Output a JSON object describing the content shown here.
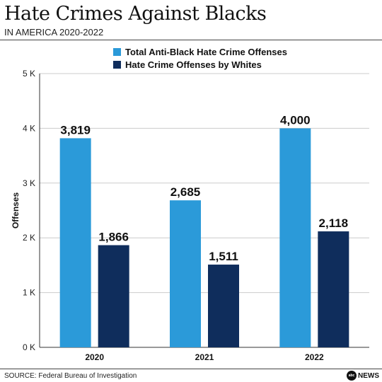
{
  "header": {
    "title": "Hate Crimes Against Blacks",
    "subtitle": "IN AMERICA 2020-2022"
  },
  "footer": {
    "source": "SOURCE: Federal Bureau of Investigation",
    "logo_mark": "abc",
    "logo_text": "NEWS"
  },
  "colors": {
    "series_1": "#2b9ad9",
    "series_2": "#0f2d5c",
    "grid": "#cccccc"
  },
  "chart_data": {
    "type": "bar",
    "categories": [
      "2020",
      "2021",
      "2022"
    ],
    "series": [
      {
        "name": "Total Anti-Black Hate Crime Offenses",
        "values": [
          3819,
          2685,
          4000
        ],
        "labels": [
          "3,819",
          "2,685",
          "4,000"
        ]
      },
      {
        "name": "Hate Crime Offenses by Whites",
        "values": [
          1866,
          1511,
          2118
        ],
        "labels": [
          "1,866",
          "1,511",
          "2,118"
        ]
      }
    ],
    "ylabel": "Offenses",
    "ylim": [
      0,
      5000
    ],
    "yticks": [
      0,
      1000,
      2000,
      3000,
      4000,
      5000
    ],
    "ytick_labels": [
      "0 K",
      "1 K",
      "2 K",
      "3 K",
      "4 K",
      "5 K"
    ],
    "grid": true,
    "legend_position": "top"
  }
}
